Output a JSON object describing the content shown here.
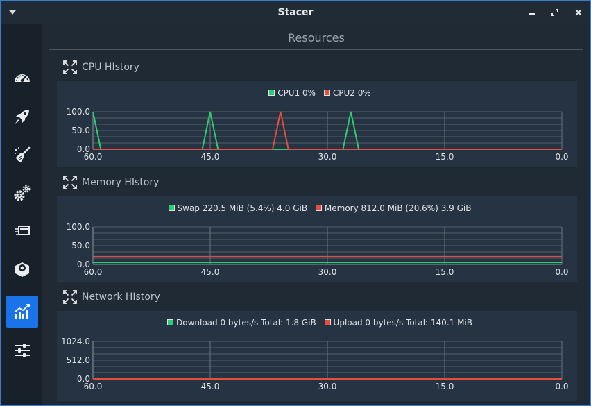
{
  "window": {
    "title": "Stacer",
    "minimize_icon": "minimize-icon",
    "restore_icon": "restore-icon",
    "close_icon": "close-icon"
  },
  "sidebar": {
    "items": [
      {
        "name": "dashboard",
        "icon": "speedometer-icon",
        "active": false
      },
      {
        "name": "startup-apps",
        "icon": "rocket-icon",
        "active": false
      },
      {
        "name": "system-cleaner",
        "icon": "broom-icon",
        "active": false
      },
      {
        "name": "services",
        "icon": "gears-icon",
        "active": false
      },
      {
        "name": "processes",
        "icon": "processes-icon",
        "active": false
      },
      {
        "name": "uninstaller",
        "icon": "package-icon",
        "active": false
      },
      {
        "name": "resources",
        "icon": "chart-icon",
        "active": true
      },
      {
        "name": "settings",
        "icon": "sliders-icon",
        "active": false
      }
    ]
  },
  "page": {
    "title": "Resources"
  },
  "sections": {
    "cpu": {
      "title": "CPU HIstory"
    },
    "memory": {
      "title": "Memory HIstory"
    },
    "network": {
      "title": "Network HIstory"
    }
  },
  "colors": {
    "series_green": "#2ecc71",
    "series_red": "#e74c3c",
    "accent": "#1a73e8"
  },
  "chart_data": [
    {
      "type": "line",
      "id": "cpu",
      "title": "",
      "xlim": [
        60,
        0
      ],
      "ylim": [
        0,
        100
      ],
      "x_ticks": [
        "60.0",
        "45.0",
        "30.0",
        "15.0",
        "0.0"
      ],
      "y_ticks": [
        "100.0",
        "50.0",
        "0.0"
      ],
      "grid": true,
      "legend_position": "top-center",
      "series": [
        {
          "name": "CPU1 0%",
          "color": "#2ecc71",
          "x": [
            60,
            59,
            46,
            45,
            44,
            28,
            27,
            26,
            0
          ],
          "y": [
            100,
            0,
            0,
            100,
            0,
            0,
            100,
            0,
            0
          ]
        },
        {
          "name": "CPU2 0%",
          "color": "#e74c3c",
          "x": [
            60,
            37,
            36,
            35,
            0
          ],
          "y": [
            0,
            0,
            100,
            0,
            0
          ]
        }
      ]
    },
    {
      "type": "line",
      "id": "memory",
      "title": "",
      "xlim": [
        60,
        0
      ],
      "ylim": [
        0,
        100
      ],
      "x_ticks": [
        "60.0",
        "45.0",
        "30.0",
        "15.0",
        "0.0"
      ],
      "y_ticks": [
        "100.0",
        "50.0",
        "0.0"
      ],
      "grid": true,
      "legend_position": "top-center",
      "series": [
        {
          "name": "Swap 220.5 MiB (5.4%) 4.0 GiB",
          "color": "#2ecc71",
          "x": [
            60,
            0
          ],
          "y": [
            5.4,
            5.4
          ]
        },
        {
          "name": "Memory 812.0 MiB (20.6%) 3.9 GiB",
          "color": "#e74c3c",
          "x": [
            60,
            0
          ],
          "y": [
            20.6,
            20.6
          ]
        }
      ]
    },
    {
      "type": "line",
      "id": "network",
      "title": "",
      "xlim": [
        60,
        0
      ],
      "ylim": [
        0,
        1024
      ],
      "x_ticks": [
        "60.0",
        "45.0",
        "30.0",
        "15.0",
        "0.0"
      ],
      "y_ticks": [
        "1024.0",
        "512.0",
        "0.0"
      ],
      "grid": true,
      "legend_position": "top-center",
      "series": [
        {
          "name": "Download 0 bytes/s Total: 1.8 GiB",
          "color": "#2ecc71",
          "x": [
            60,
            0
          ],
          "y": [
            0,
            0
          ]
        },
        {
          "name": "Upload 0 bytes/s Total: 140.1 MiB",
          "color": "#e74c3c",
          "x": [
            60,
            0
          ],
          "y": [
            0,
            0
          ]
        }
      ]
    }
  ]
}
